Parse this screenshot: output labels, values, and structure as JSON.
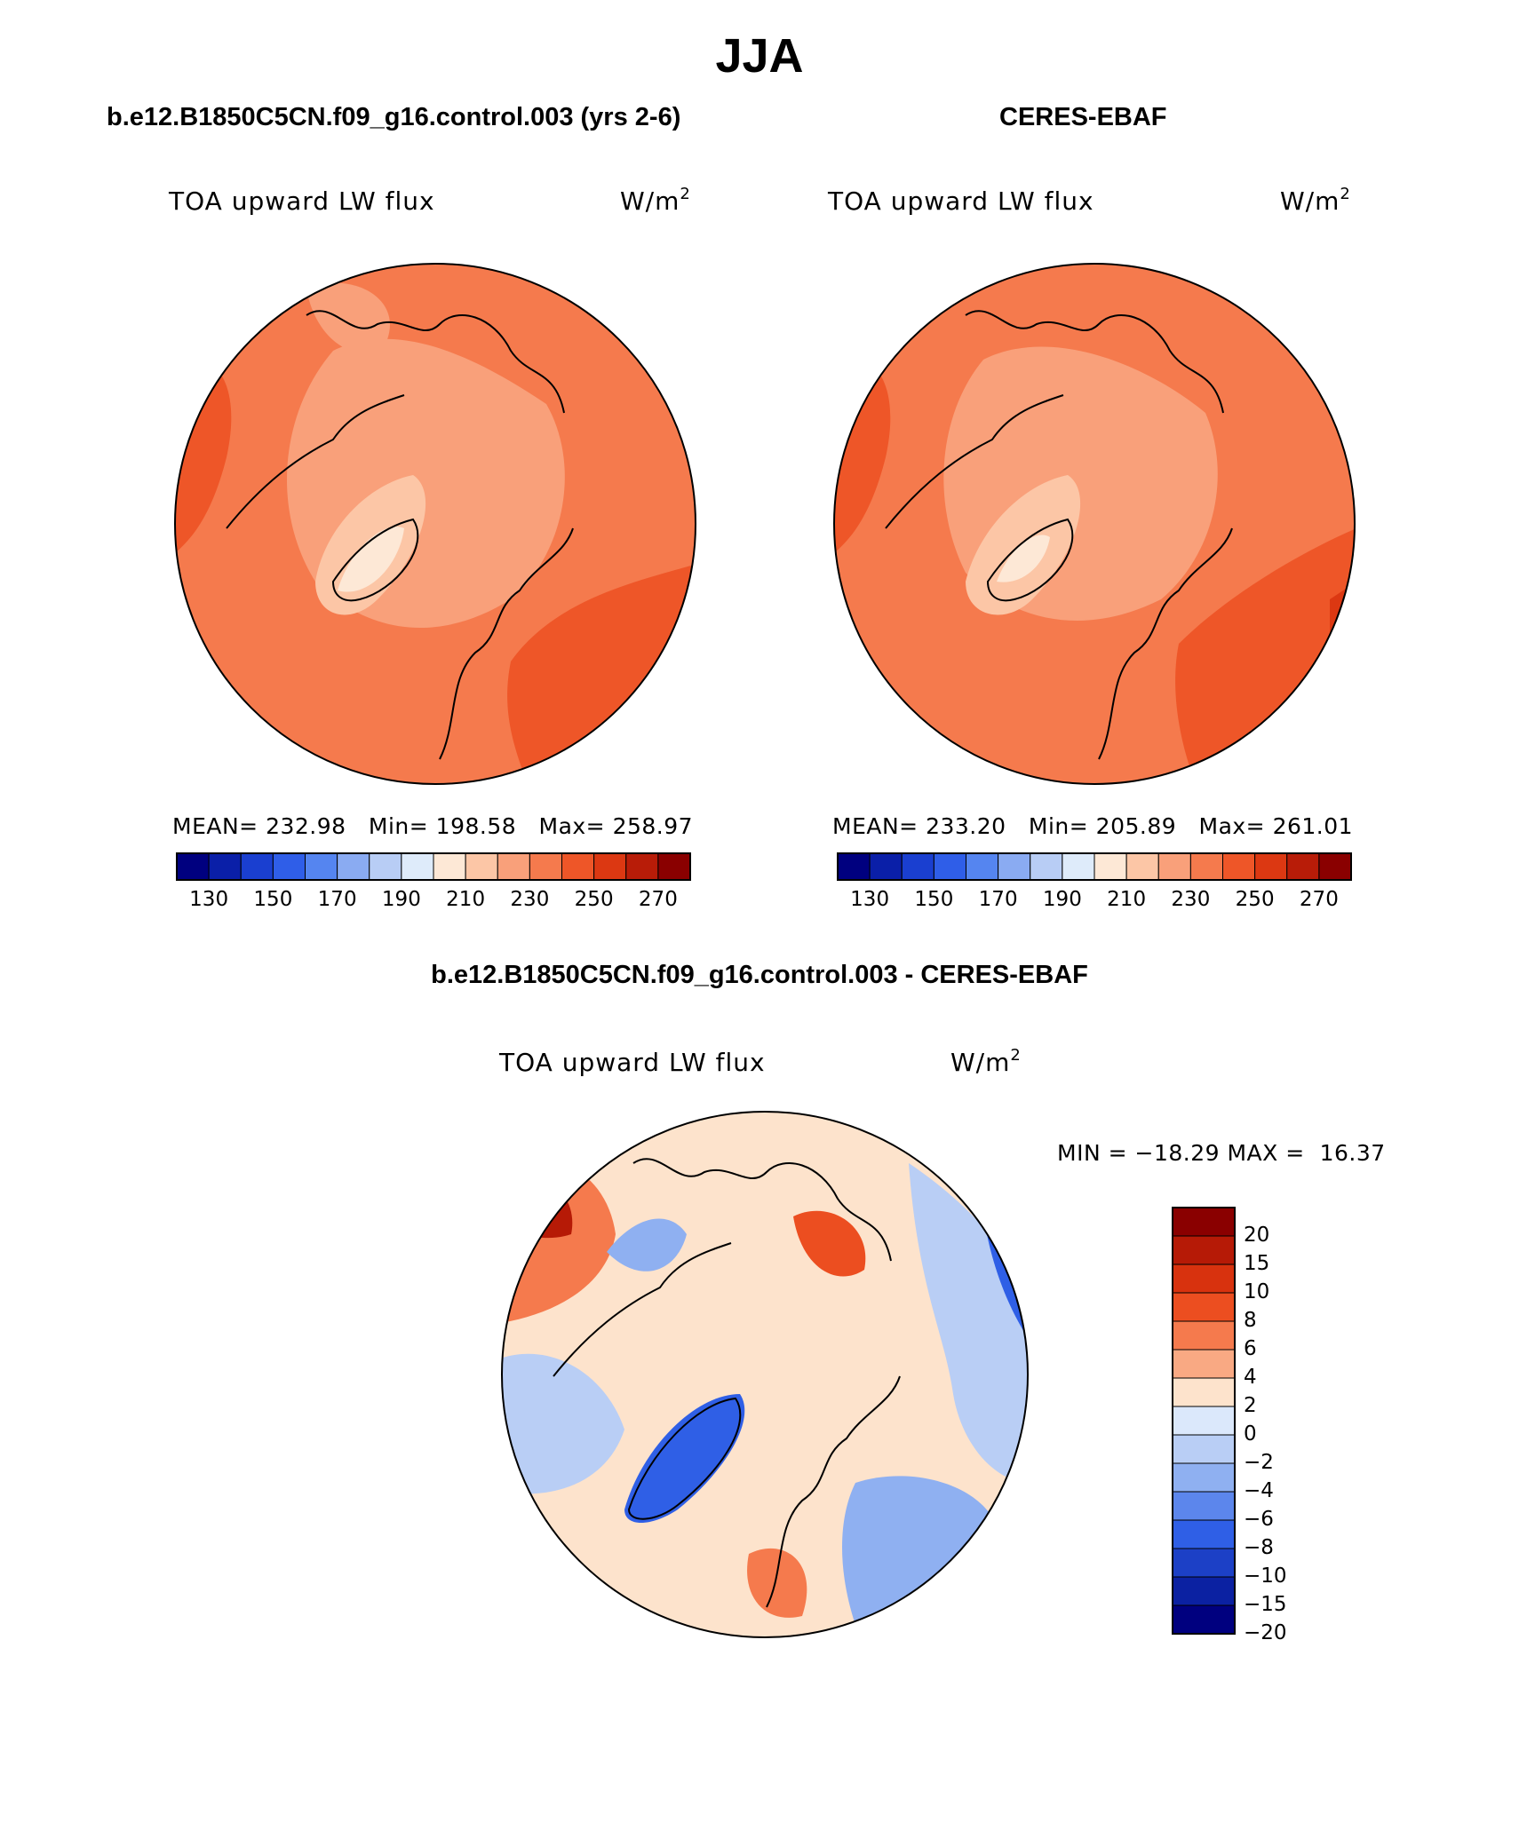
{
  "page": {
    "title": "JJA",
    "difference_title": "b.e12.B1850C5CN.f09_g16.control.003 - CERES-EBAF"
  },
  "colors": {
    "abs_scale": [
      "#00007f",
      "#0a1fa8",
      "#1a3fd0",
      "#2f5ee8",
      "#5585f0",
      "#8aabf2",
      "#b8cdf5",
      "#deebfa",
      "#fde8d6",
      "#fcc6a6",
      "#f9a07a",
      "#f57a4d",
      "#ee5628",
      "#dc3812",
      "#b81c08",
      "#8a0000"
    ],
    "diff_scale": [
      "#8a0000",
      "#b61a06",
      "#d8320e",
      "#ec4e20",
      "#f57a4d",
      "#f9a983",
      "#fde3cc",
      "#dbe8fb",
      "#b9cef5",
      "#8fb0f1",
      "#5c86ec",
      "#2f5fe6",
      "#1c40c6",
      "#0b21a2",
      "#00007f"
    ]
  },
  "chart_data": [
    {
      "type": "heatmap",
      "projection": "north polar stereographic",
      "title": "b.e12.B1850C5CN.f09_g16.control.003 (yrs 2-6)",
      "field": "TOA upward LW flux",
      "units": "W/m",
      "units_sup": "2",
      "stats": {
        "mean_label": "MEAN=",
        "mean": "232.98",
        "min_label": "Min=",
        "min": "198.58",
        "max_label": "Max=",
        "max": "258.97"
      },
      "colorbar_ticks": [
        "130",
        "150",
        "170",
        "190",
        "210",
        "230",
        "250",
        "270"
      ],
      "colorbar_bins": 16
    },
    {
      "type": "heatmap",
      "projection": "north polar stereographic",
      "title": "CERES-EBAF",
      "field": "TOA upward LW flux",
      "units": "W/m",
      "units_sup": "2",
      "stats": {
        "mean_label": "MEAN=",
        "mean": "233.20",
        "min_label": "Min=",
        "min": "205.89",
        "max_label": "Max=",
        "max": "261.01"
      },
      "colorbar_ticks": [
        "130",
        "150",
        "170",
        "190",
        "210",
        "230",
        "250",
        "270"
      ],
      "colorbar_bins": 16
    },
    {
      "type": "heatmap",
      "projection": "north polar stereographic",
      "title": "b.e12.B1850C5CN.f09_g16.control.003 - CERES-EBAF",
      "field": "TOA upward LW flux",
      "units": "W/m",
      "units_sup": "2",
      "stats": {
        "min_label": "MIN =",
        "min": "−18.29",
        "max_label": "MAX =",
        "max": "16.37"
      },
      "colorbar_ticks": [
        "20",
        "15",
        "10",
        "8",
        "6",
        "4",
        "2",
        "0",
        "−2",
        "−4",
        "−6",
        "−8",
        "−10",
        "−15",
        "−20"
      ]
    }
  ]
}
